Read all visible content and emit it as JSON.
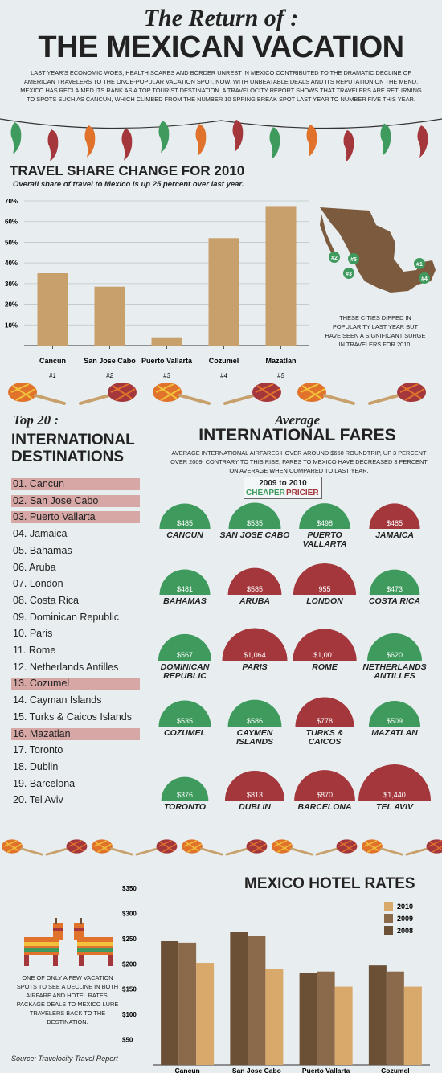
{
  "header": {
    "script_title": "The Return of :",
    "main_title": "THE MEXICAN VACATION",
    "intro": "LAST YEAR'S ECONOMIC WOES, HEALTH SCARES AND BORDER UNREST IN MEXICO CONTRIBUTED TO THE DRAMATIC DECLINE OF AMERICAN TRAVELERS TO THE ONCE-POPULAR VACATION SPOT. NOW, WITH UNBEATABLE DEALS AND ITS REPUTATION ON THE MEND, MEXICO HAS RECLAIMED ITS RANK AS A TOP TOURIST DESTINATION. A TRAVELOCITY REPORT SHOWS THAT TRAVELERS ARE RETURNING TO SPOTS SUCH AS CANCUN, WHICH CLIMBED FROM THE NUMBER 10 SPRING BREAK SPOT LAST YEAR TO NUMBER FIVE THIS YEAR."
  },
  "share_section": {
    "title": "TRAVEL SHARE CHANGE FOR 2010",
    "subtitle": "Overall share of travel to Mexico is up 25 percent over last year.",
    "map_note": "THESE CITIES DIPPED IN POPULARITY LAST YEAR BUT HAVE SEEN A SIGNIFICANT SURGE IN TRAVELERS FOR 2010.",
    "map_markers": [
      "#1",
      "#2",
      "#3",
      "#4",
      "#5"
    ]
  },
  "top20": {
    "script_title": "Top 20 :",
    "heading": "INTERNATIONAL DESTINATIONS",
    "items": [
      {
        "label": "01. Cancun",
        "highlight": true
      },
      {
        "label": "02. San Jose Cabo",
        "highlight": true
      },
      {
        "label": "03. Puerto Vallarta",
        "highlight": true
      },
      {
        "label": "04. Jamaica",
        "highlight": false
      },
      {
        "label": "05. Bahamas",
        "highlight": false
      },
      {
        "label": "06. Aruba",
        "highlight": false
      },
      {
        "label": "07. London",
        "highlight": false
      },
      {
        "label": "08. Costa Rica",
        "highlight": false
      },
      {
        "label": "09. Dominican Republic",
        "highlight": false
      },
      {
        "label": "10. Paris",
        "highlight": false
      },
      {
        "label": "11. Rome",
        "highlight": false
      },
      {
        "label": "12. Netherlands Antilles",
        "highlight": false
      },
      {
        "label": "13. Cozumel",
        "highlight": true
      },
      {
        "label": "14. Cayman Islands",
        "highlight": false
      },
      {
        "label": "15. Turks & Caicos Islands",
        "highlight": false
      },
      {
        "label": "16. Mazatlan",
        "highlight": true
      },
      {
        "label": "17. Toronto",
        "highlight": false
      },
      {
        "label": "18. Dublin",
        "highlight": false
      },
      {
        "label": "19. Barcelona",
        "highlight": false
      },
      {
        "label": "20. Tel Aviv",
        "highlight": false
      }
    ]
  },
  "fares": {
    "script_title": "Average",
    "heading": "INTERNATIONAL FARES",
    "text": "AVERAGE INTERNATIONAL AIRFARES HOVER AROUND $650 ROUNDTRIP, UP 3 PERCENT OVER 2009. CONTRARY TO THIS RISE, FARES TO MEXICO HAVE DECREASED 3 PERCENT ON AVERAGE WHEN COMPARED TO LAST YEAR.",
    "legend_title": "2009 to 2010",
    "legend_cheaper": "CHEAPER",
    "legend_pricier": "PRICIER"
  },
  "hotel_section": {
    "title": "MEXICO HOTEL RATES",
    "note": "ONE OF ONLY A FEW VACATION SPOTS TO SEE A DECLINE IN BOTH AIRFARE AND HOTEL RATES, PACKAGE DEALS TO MEXICO LURE TRAVELERS BACK TO THE DESTINATION."
  },
  "footer": {
    "source": "Source: Travelocity Travel Report"
  },
  "colors": {
    "background": "#e8eef0",
    "bar_tan": "#c8a06c",
    "map_brown": "#7b5a3e",
    "cheaper_green": "#3f9a5e",
    "pricier_red": "#a3373c",
    "hotel_2010": "#d9a86b",
    "hotel_2009": "#8a6a4a",
    "hotel_2008": "#6b5036",
    "highlight_row": "#d6a7a5"
  },
  "icons": [
    "chili-pepper-icon",
    "maraca-icon",
    "mexico-map-icon",
    "pinata-donkey-icon"
  ],
  "chart_data": [
    {
      "type": "bar",
      "title": "TRAVEL SHARE CHANGE FOR 2010",
      "subtitle": "Overall share of travel to Mexico is up 25 percent over last year.",
      "categories": [
        "Cancun",
        "San Jose Cabo",
        "Puerto Vallarta",
        "Cozumel",
        "Mazatlan"
      ],
      "rank_labels": [
        "#1",
        "#2",
        "#3",
        "#4",
        "#5"
      ],
      "values": [
        35,
        28.5,
        4,
        52,
        67.5
      ],
      "ylim": [
        0,
        70
      ],
      "yticks": [
        "10%",
        "20%",
        "30%",
        "40%",
        "50%",
        "60%",
        "70%"
      ],
      "ytick_values": [
        10,
        20,
        30,
        40,
        50,
        60,
        70
      ],
      "grid": true
    },
    {
      "type": "bar",
      "title": "Average INTERNATIONAL FARES",
      "categories": [
        "CANCUN",
        "SAN JOSE CABO",
        "PUERTO VALLARTA",
        "JAMAICA",
        "BAHAMAS",
        "ARUBA",
        "LONDON",
        "COSTA RICA",
        "DOMINICAN REPUBLIC",
        "PARIS",
        "ROME",
        "NETHERLANDS ANTILLES",
        "COZUMEL",
        "CAYMEN ISLANDS",
        "TURKS & CAICOS",
        "MAZATLAN",
        "TORONTO",
        "DUBLIN",
        "BARCELONA",
        "TEL AVIV"
      ],
      "values": [
        485,
        535,
        498,
        485,
        481,
        585,
        955,
        473,
        567,
        1064,
        1001,
        620,
        535,
        586,
        778,
        509,
        376,
        813,
        870,
        1440
      ],
      "value_labels": [
        "$485",
        "$535",
        "$498",
        "$485",
        "$481",
        "$585",
        "955",
        "$473",
        "$567",
        "$1,064",
        "$1,001",
        "$620",
        "$535",
        "$586",
        "$778",
        "$509",
        "$376",
        "$813",
        "$870",
        "$1,440"
      ],
      "change": [
        "cheaper",
        "cheaper",
        "cheaper",
        "pricier",
        "cheaper",
        "pricier",
        "pricier",
        "cheaper",
        "cheaper",
        "pricier",
        "pricier",
        "cheaper",
        "cheaper",
        "cheaper",
        "pricier",
        "cheaper",
        "cheaper",
        "pricier",
        "pricier",
        "pricier"
      ]
    },
    {
      "type": "bar",
      "title": "MEXICO HOTEL RATES",
      "categories": [
        "Cancun",
        "San Jose Cabo",
        "Puerto Vallarta",
        "Cozumel"
      ],
      "series": [
        {
          "name": "2010",
          "values": [
            202,
            190,
            155,
            155
          ]
        },
        {
          "name": "2009",
          "values": [
            242,
            255,
            185,
            185
          ]
        },
        {
          "name": "2008",
          "values": [
            245,
            264,
            182,
            197
          ]
        }
      ],
      "ylim": [
        0,
        350
      ],
      "yticks": [
        "$350",
        "$300",
        "$250",
        "$200",
        "$150",
        "$100",
        "$50"
      ],
      "ytick_values": [
        350,
        300,
        250,
        200,
        150,
        100,
        50
      ],
      "legend_position": "top-right",
      "grid": false
    }
  ]
}
